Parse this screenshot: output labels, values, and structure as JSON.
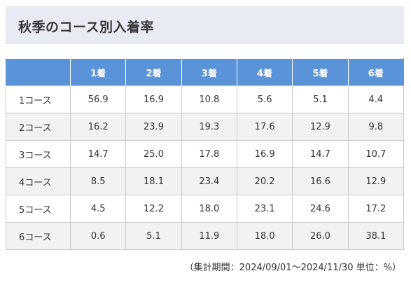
{
  "title": "秋季のコース別入着率",
  "table": {
    "headers": [
      "",
      "1着",
      "2着",
      "3着",
      "4着",
      "5着",
      "6着"
    ],
    "rows": [
      {
        "course": "1コース",
        "values": [
          "56.9",
          "16.9",
          "10.8",
          "5.6",
          "5.1",
          "4.4"
        ]
      },
      {
        "course": "2コース",
        "values": [
          "16.2",
          "23.9",
          "19.3",
          "17.6",
          "12.9",
          "9.8"
        ]
      },
      {
        "course": "3コース",
        "values": [
          "14.7",
          "25.0",
          "17.8",
          "16.9",
          "14.7",
          "10.7"
        ]
      },
      {
        "course": "4コース",
        "values": [
          "8.5",
          "18.1",
          "23.4",
          "20.2",
          "16.6",
          "12.9"
        ]
      },
      {
        "course": "5コース",
        "values": [
          "4.5",
          "12.2",
          "18.0",
          "23.1",
          "24.6",
          "17.2"
        ]
      },
      {
        "course": "6コース",
        "values": [
          "0.6",
          "5.1",
          "11.9",
          "18.0",
          "26.0",
          "38.1"
        ]
      }
    ]
  },
  "footnote": "（集計期間：2024/09/01～2024/11/30 単位：%）",
  "colors": {
    "header_bg": "#5b93d8",
    "title_bg": "#e8ebf4",
    "stripe_bg": "#f2f2f2"
  }
}
